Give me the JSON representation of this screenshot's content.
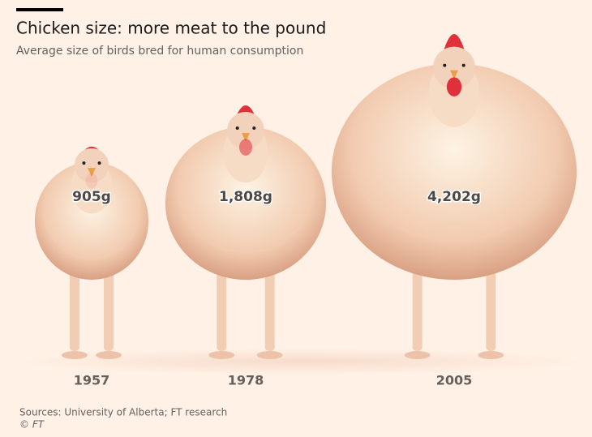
{
  "chart_data": {
    "type": "pictogram",
    "title": "Chicken size: more meat to the pound",
    "subtitle": "Average size of birds bred for human consumption",
    "categories": [
      "1957",
      "1978",
      "2005"
    ],
    "values": [
      905,
      1808,
      4202
    ],
    "value_labels": [
      "905g",
      "1,808g",
      "4,202g"
    ],
    "source": "Sources: University of Alberta; FT research",
    "credit": "© FT"
  }
}
